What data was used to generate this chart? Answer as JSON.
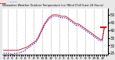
{
  "title": "Milwaukee Weather Outdoor Temperature (vs) Wind Chill (Last 24 Hours)",
  "bg_color": "#e8e8e8",
  "plot_bg_color": "#ffffff",
  "grid_color": "#aaaaaa",
  "red_color": "#dd0000",
  "blue_color": "#0000cc",
  "x_labels": [
    "1",
    "",
    "2",
    "",
    "3",
    "",
    "4",
    "",
    "5",
    "",
    "6",
    "",
    "7",
    "",
    "8",
    "",
    "9",
    "",
    "10",
    "",
    "11",
    "",
    "12",
    "",
    "1",
    "",
    "2",
    "",
    "3",
    "",
    "4",
    "",
    "5",
    "",
    "6",
    "",
    "7",
    "",
    "8",
    "",
    "9",
    "",
    "10",
    "",
    "11",
    "",
    "12",
    ""
  ],
  "ylim": [
    24,
    54
  ],
  "yticks": [
    25,
    30,
    35,
    40,
    45,
    50
  ],
  "temp_data": [
    27,
    27,
    27,
    27,
    27,
    27,
    27,
    27,
    27.5,
    28,
    28.5,
    29,
    30,
    31,
    32,
    33,
    35,
    38,
    41,
    44,
    46,
    48,
    49,
    50,
    50,
    50,
    49.5,
    49,
    49,
    49,
    48,
    47,
    46,
    45,
    44,
    44,
    43,
    42,
    41,
    40,
    39,
    38,
    37,
    36,
    35,
    34,
    34,
    42,
    42
  ],
  "wchill_data": [
    25,
    25,
    25,
    25,
    24,
    25,
    25,
    25,
    25.5,
    26,
    27,
    28,
    29,
    30,
    31,
    32,
    34,
    37,
    40,
    43,
    45,
    47,
    48,
    49,
    49,
    49,
    48.5,
    48,
    48,
    48,
    47,
    46,
    45,
    44,
    43,
    43,
    42,
    41,
    40,
    39,
    38,
    37,
    36,
    35,
    34,
    33,
    33,
    42,
    42
  ]
}
